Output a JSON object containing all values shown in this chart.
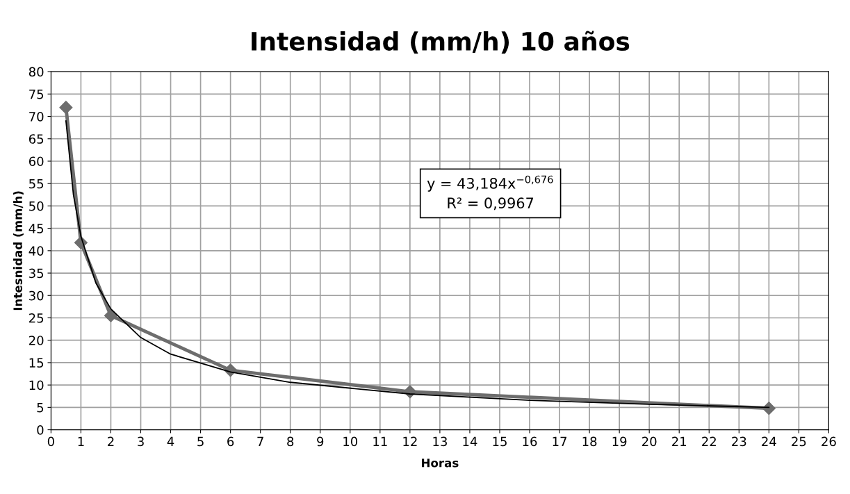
{
  "chart_data": {
    "type": "line",
    "title": "Intensidad (mm/h) 10 años",
    "xlabel": "Horas",
    "ylabel": "Intesnidad (mm/h)",
    "xlim": [
      0,
      26
    ],
    "xticks": [
      0,
      1,
      2,
      3,
      4,
      5,
      6,
      7,
      8,
      9,
      10,
      11,
      12,
      13,
      14,
      15,
      16,
      17,
      18,
      19,
      20,
      21,
      22,
      23,
      24,
      25,
      26
    ],
    "ylim": [
      0,
      80
    ],
    "yticks": [
      0,
      5,
      10,
      15,
      20,
      25,
      30,
      35,
      40,
      45,
      50,
      55,
      60,
      65,
      70,
      75,
      80
    ],
    "grid": true,
    "series": [
      {
        "color": "#6d6d6d",
        "marker": "diamond",
        "x": [
          0.5,
          1,
          2,
          6,
          12,
          24
        ],
        "values": [
          72,
          41.8,
          25.5,
          13.3,
          8.5,
          4.8
        ]
      },
      {
        "color": "#000000",
        "marker": "none",
        "x": [
          0.5,
          0.75,
          1,
          1.5,
          2,
          3,
          4,
          6,
          8,
          12,
          16,
          20,
          24
        ],
        "values": [
          69,
          52.5,
          43.2,
          32.8,
          27,
          20.6,
          16.9,
          12.9,
          10.6,
          8,
          6.6,
          5.7,
          5
        ]
      }
    ],
    "annotations": [
      "y = 43,184x$^{−0,676}$",
      "R² = 0,9967"
    ]
  }
}
